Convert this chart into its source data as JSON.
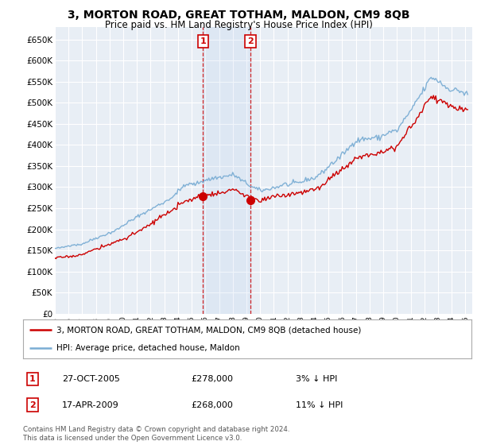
{
  "title": "3, MORTON ROAD, GREAT TOTHAM, MALDON, CM9 8QB",
  "subtitle": "Price paid vs. HM Land Registry's House Price Index (HPI)",
  "title_fontsize": 10,
  "subtitle_fontsize": 8.5,
  "ylabel_ticks": [
    "£0",
    "£50K",
    "£100K",
    "£150K",
    "£200K",
    "£250K",
    "£300K",
    "£350K",
    "£400K",
    "£450K",
    "£500K",
    "£550K",
    "£600K",
    "£650K"
  ],
  "ytick_values": [
    0,
    50000,
    100000,
    150000,
    200000,
    250000,
    300000,
    350000,
    400000,
    450000,
    500000,
    550000,
    600000,
    650000
  ],
  "ylim": [
    0,
    680000
  ],
  "xlim_start": 1995.0,
  "xlim_end": 2025.5,
  "sale1_x": 2005.82,
  "sale1_y": 278000,
  "sale2_x": 2009.29,
  "sale2_y": 268000,
  "sale1_date": "27-OCT-2005",
  "sale1_price": "£278,000",
  "sale1_hpi": "3% ↓ HPI",
  "sale2_date": "17-APR-2009",
  "sale2_price": "£268,000",
  "sale2_hpi": "11% ↓ HPI",
  "property_line_color": "#cc0000",
  "hpi_line_color": "#7aadd4",
  "background_color": "#ffffff",
  "plot_bg_color": "#e8eef5",
  "grid_color": "#ffffff",
  "legend_label_property": "3, MORTON ROAD, GREAT TOTHAM, MALDON, CM9 8QB (detached house)",
  "legend_label_hpi": "HPI: Average price, detached house, Maldon",
  "footnote": "Contains HM Land Registry data © Crown copyright and database right 2024.\nThis data is licensed under the Open Government Licence v3.0.",
  "xtick_years": [
    1995,
    1996,
    1997,
    1998,
    1999,
    2000,
    2001,
    2002,
    2003,
    2004,
    2005,
    2006,
    2007,
    2008,
    2009,
    2010,
    2011,
    2012,
    2013,
    2014,
    2015,
    2016,
    2017,
    2018,
    2019,
    2020,
    2021,
    2022,
    2023,
    2024,
    2025
  ]
}
